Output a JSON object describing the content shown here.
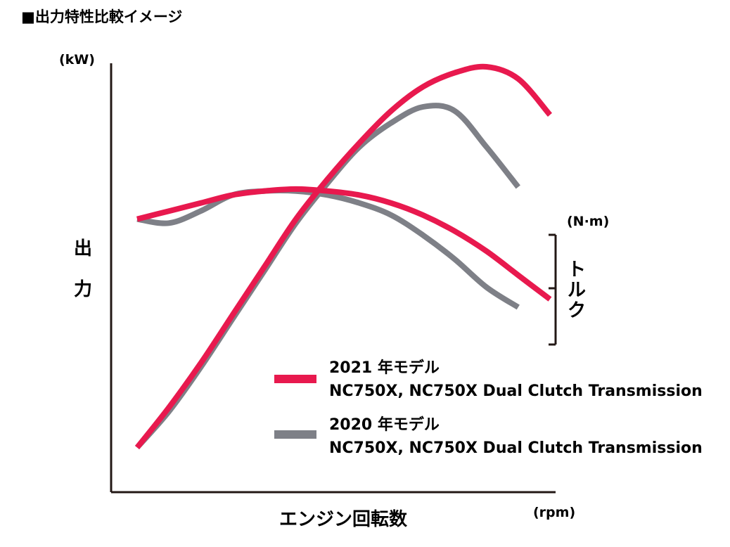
{
  "chart_data": {
    "type": "line",
    "title": "■出力特性比較イメージ",
    "xlabel": "エンジン回転数",
    "x_unit": "(rpm)",
    "ylabel_left": "出力",
    "y_unit_left": "(kW)",
    "ylabel_right": "トルク",
    "y_unit_right": "(N·m)",
    "x": [
      0,
      0.05,
      0.1,
      0.15,
      0.2,
      0.25,
      0.3,
      0.35,
      0.4,
      0.45,
      0.5,
      0.55,
      0.6,
      0.65,
      0.7,
      0.75,
      0.8,
      0.85,
      0.9,
      0.95,
      1.0
    ],
    "grid": false,
    "legend_position": "bottom-right",
    "series": [
      {
        "name": "2021 年モデル\nNC750X, NC750X Dual Clutch Transmission",
        "legend_line1": "2021 年モデル",
        "legend_line2": "NC750X, NC750X Dual Clutch Transmission",
        "color": "#e8194e",
        "output": [
          0.05,
          0.15,
          0.26,
          0.38,
          0.5,
          0.62,
          0.72,
          0.81,
          0.89,
          0.95,
          0.985,
          1.0,
          0.97,
          0.88
        ],
        "output_x": [
          0,
          0.07,
          0.14,
          0.21,
          0.28,
          0.35,
          0.42,
          0.49,
          0.56,
          0.63,
          0.7,
          0.77,
          0.84,
          0.91
        ],
        "torque": [
          0.62,
          0.64,
          0.66,
          0.68,
          0.69,
          0.695,
          0.69,
          0.68,
          0.66,
          0.63,
          0.59,
          0.54,
          0.48,
          0.42
        ],
        "torque_x": [
          0,
          0.07,
          0.14,
          0.21,
          0.28,
          0.35,
          0.42,
          0.49,
          0.56,
          0.63,
          0.7,
          0.77,
          0.84,
          0.91
        ]
      },
      {
        "name": "2020 年モデル\nNC750X, NC750X Dual Clutch Transmission",
        "legend_line1": "2020 年モデル",
        "legend_line2": "NC750X, NC750X Dual Clutch Transmission",
        "color": "#7e8087",
        "output": [
          0.05,
          0.14,
          0.25,
          0.37,
          0.49,
          0.61,
          0.71,
          0.8,
          0.86,
          0.9,
          0.89,
          0.8,
          0.7
        ],
        "output_x": [
          0,
          0.07,
          0.14,
          0.21,
          0.28,
          0.35,
          0.42,
          0.49,
          0.56,
          0.63,
          0.7,
          0.77,
          0.84
        ],
        "torque": [
          0.62,
          0.61,
          0.64,
          0.68,
          0.69,
          0.69,
          0.68,
          0.66,
          0.63,
          0.58,
          0.52,
          0.45,
          0.4
        ],
        "torque_x": [
          0,
          0.07,
          0.14,
          0.21,
          0.28,
          0.35,
          0.42,
          0.49,
          0.56,
          0.63,
          0.7,
          0.77,
          0.84
        ]
      }
    ]
  }
}
